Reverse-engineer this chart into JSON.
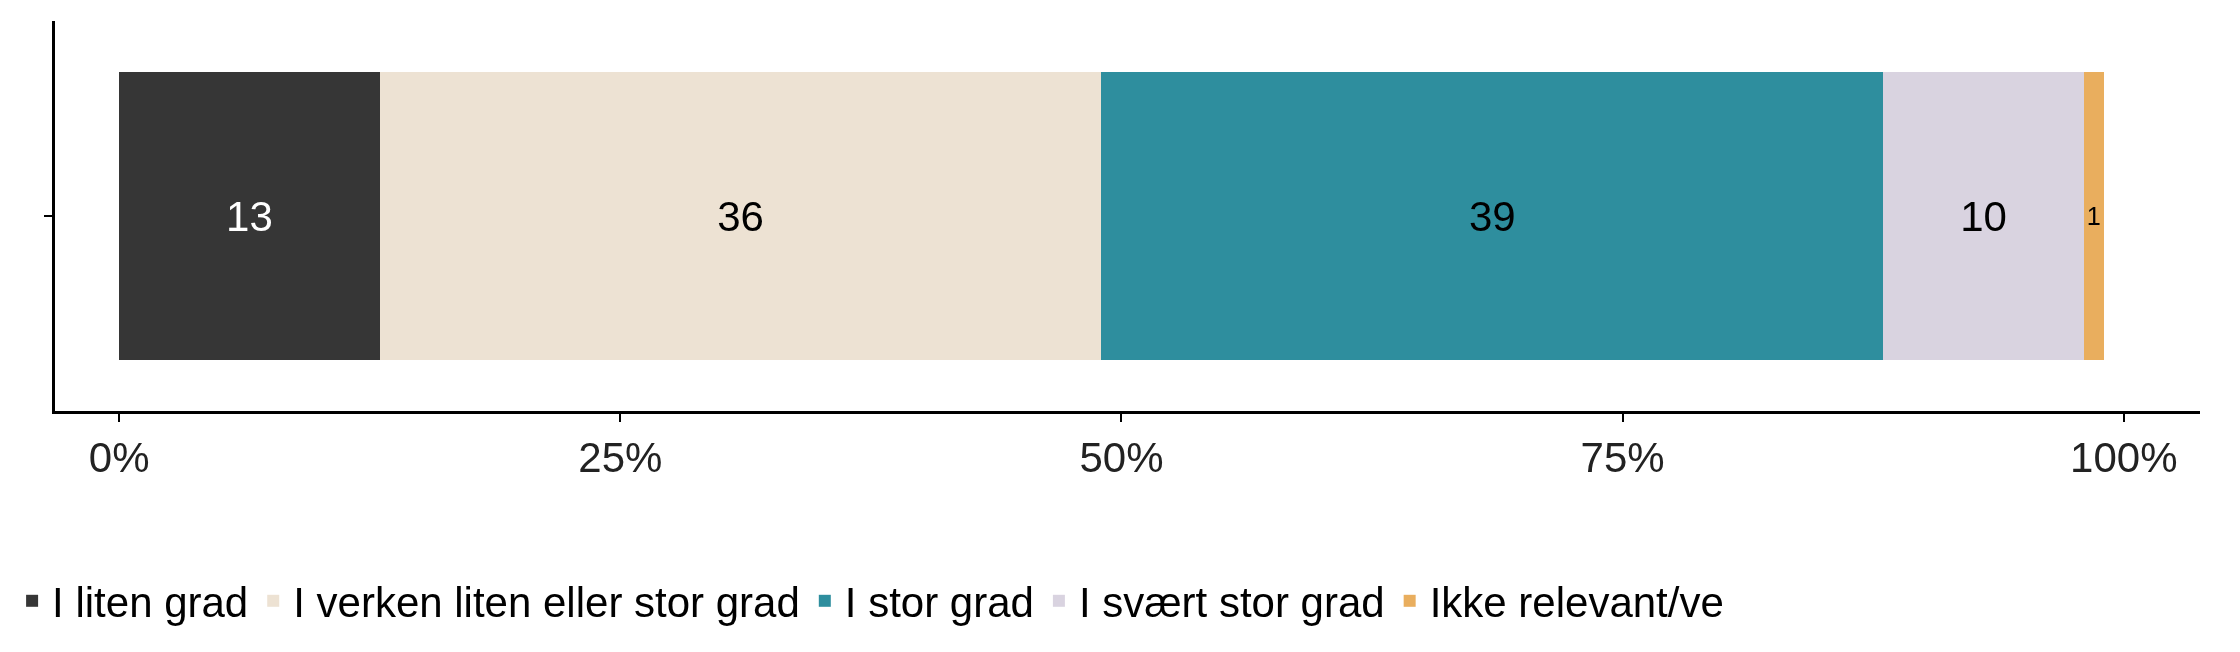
{
  "chart_data": {
    "type": "bar",
    "orientation": "horizontal",
    "stacked": true,
    "categories": [
      null
    ],
    "series": [
      {
        "name": "I liten grad",
        "color": "#363636",
        "values": [
          13
        ]
      },
      {
        "name": "I verken liten eller stor grad",
        "color": "#ede2d3",
        "values": [
          36
        ]
      },
      {
        "name": "I stor grad",
        "color": "#2e8e9e",
        "values": [
          39
        ]
      },
      {
        "name": "I svært stor grad",
        "color": "#d9d3e0",
        "values": [
          10
        ]
      },
      {
        "name": "Ikke relevant/ve",
        "color": "#e9ae5e",
        "values": [
          1
        ]
      }
    ],
    "xlim": [
      -3.2,
      103.8
    ],
    "xticks": [
      {
        "value": 0,
        "label": "0%"
      },
      {
        "value": 25,
        "label": "25%"
      },
      {
        "value": 50,
        "label": "50%"
      },
      {
        "value": 75,
        "label": "75%"
      },
      {
        "value": 100,
        "label": "100%"
      }
    ],
    "data_labels": true,
    "legend": "bottom"
  }
}
